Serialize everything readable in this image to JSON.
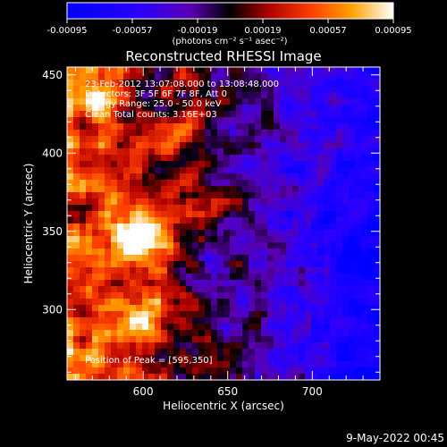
{
  "chart_data": {
    "type": "heatmap",
    "title": "Reconstructed RHESSI Image",
    "xlabel": "Heliocentric X (arcsec)",
    "ylabel": "Heliocentric Y (arcsec)",
    "xlim": [
      555,
      740
    ],
    "ylim": [
      255,
      455
    ],
    "x_ticks": [
      600,
      650,
      700
    ],
    "y_ticks": [
      300,
      350,
      400,
      450
    ],
    "colorbar": {
      "ticks": [
        "-0.00095",
        "-0.00057",
        "-0.00019",
        "0.00019",
        "0.00057",
        "0.00095"
      ],
      "unit_label": "(photons cm⁻² s⁻¹ asec⁻²)",
      "range": [
        -0.00095,
        0.00095
      ]
    },
    "annotations": [
      "23-Feb-2012 13:07:08.000 to 13:08:48.000",
      "Detectors: 3F 5F 6F 7F 8F, Att 0",
      "Energy Range: 25.0 - 50.0 keV",
      "Clean     Total counts: 3.16E+03"
    ],
    "peak_label": "Position of Peak = [595,350]",
    "peak": {
      "x": 595,
      "y": 350
    }
  },
  "footer": {
    "date": "9-May-2022 00:45"
  }
}
